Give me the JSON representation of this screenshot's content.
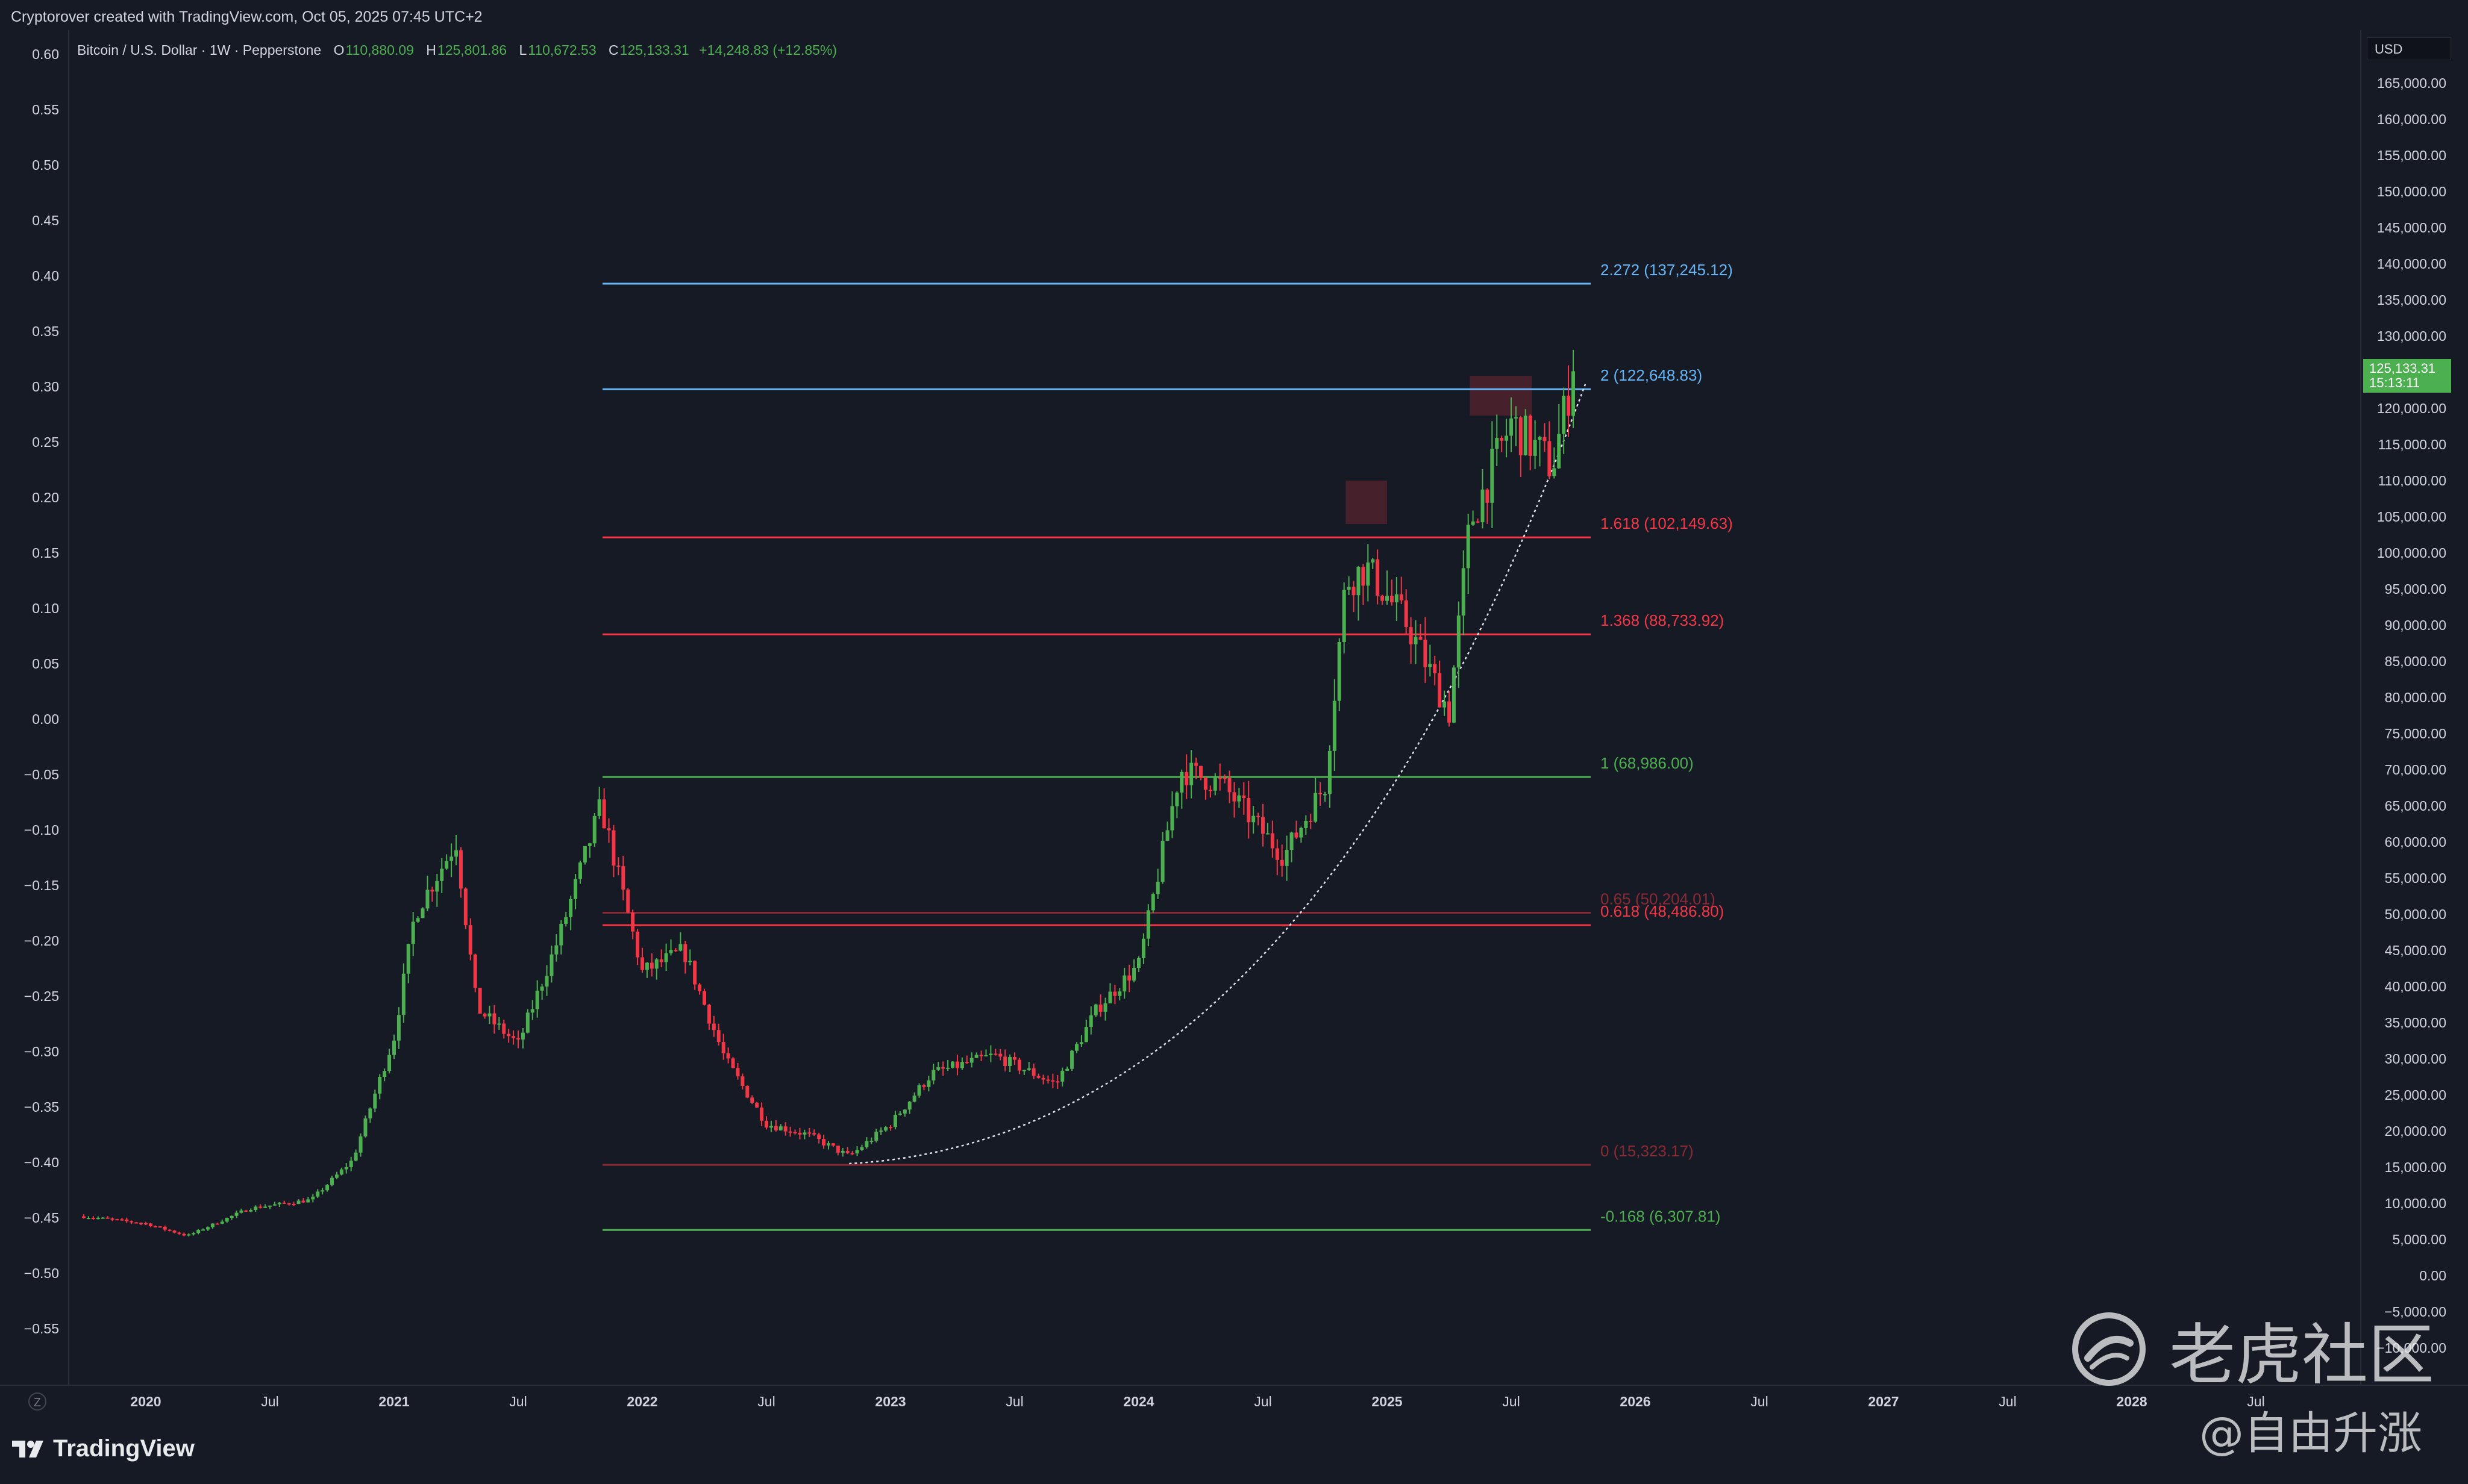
{
  "credit": "Cryptorover created with TradingView.com, Oct 05, 2025 07:45 UTC+2",
  "legend": {
    "symbol": "Bitcoin / U.S. Dollar · 1W · Pepperstone",
    "open_label": "O",
    "open": "110,880.09",
    "high_label": "H",
    "high": "125,801.86",
    "low_label": "L",
    "low": "110,672.53",
    "close_label": "C",
    "close": "125,133.31",
    "change": "+14,248.83 (+12.85%)"
  },
  "currency": "USD",
  "price_tag": {
    "price": "125,133.31",
    "countdown": "15:13:11"
  },
  "footer_brand": "TradingView",
  "watermark": {
    "big": "老虎社区",
    "small": "@自由升涨"
  },
  "colors": {
    "bg": "#161a25",
    "up": "#4caf50",
    "down": "#f23645",
    "fib_blue": "#64b5f6",
    "fib_red": "#f23645",
    "fib_green": "#4caf50",
    "text": "#d1d4dc"
  },
  "chart_data": {
    "type": "candlestick",
    "title": "Bitcoin / U.S. Dollar · 1W · Pepperstone",
    "currency": "USD",
    "right_axis": {
      "label": "USD",
      "ticks": [
        "165,000.00",
        "160,000.00",
        "155,000.00",
        "150,000.00",
        "145,000.00",
        "140,000.00",
        "135,000.00",
        "130,000.00",
        "125,000.00",
        "120,000.00",
        "115,000.00",
        "110,000.00",
        "105,000.00",
        "100,000.00",
        "95,000.00",
        "90,000.00",
        "85,000.00",
        "80,000.00",
        "75,000.00",
        "70,000.00",
        "65,000.00",
        "60,000.00",
        "55,000.00",
        "50,000.00",
        "45,000.00",
        "40,000.00",
        "35,000.00",
        "30,000.00",
        "25,000.00",
        "20,000.00",
        "15,000.00",
        "10,000.00",
        "5,000.00",
        "0.00",
        "−5,000.00",
        "−10,000.00"
      ],
      "range": [
        -10000,
        165000
      ]
    },
    "left_axis": {
      "ticks": [
        "0.60",
        "0.55",
        "0.50",
        "0.45",
        "0.40",
        "0.35",
        "0.30",
        "0.25",
        "0.20",
        "0.15",
        "0.10",
        "0.05",
        "0.00",
        "−0.05",
        "−0.10",
        "−0.15",
        "−0.20",
        "−0.25",
        "−0.30",
        "−0.35",
        "−0.40",
        "−0.45",
        "−0.50",
        "−0.55"
      ]
    },
    "x_axis": {
      "ticks": [
        "2020",
        "Jul",
        "2021",
        "Jul",
        "2022",
        "Jul",
        "2023",
        "Jul",
        "2024",
        "Jul",
        "2025",
        "Jul",
        "2026",
        "Jul",
        "2027",
        "Jul",
        "2028",
        "Jul"
      ]
    },
    "anchor_points": [
      {
        "date": "2019-10",
        "price": 8200
      },
      {
        "date": "2020-01",
        "price": 7200
      },
      {
        "date": "2020-03",
        "price": 5500
      },
      {
        "date": "2020-06",
        "price": 9300
      },
      {
        "date": "2020-09",
        "price": 10500
      },
      {
        "date": "2020-11",
        "price": 16000
      },
      {
        "date": "2021-01",
        "price": 33000
      },
      {
        "date": "2021-02",
        "price": 50000
      },
      {
        "date": "2021-04",
        "price": 60000
      },
      {
        "date": "2021-05",
        "price": 37000
      },
      {
        "date": "2021-07",
        "price": 32000
      },
      {
        "date": "2021-09",
        "price": 47000
      },
      {
        "date": "2021-11",
        "price": 65000
      },
      {
        "date": "2022-01",
        "price": 42000
      },
      {
        "date": "2022-03",
        "price": 45000
      },
      {
        "date": "2022-05",
        "price": 30000
      },
      {
        "date": "2022-07",
        "price": 21000
      },
      {
        "date": "2022-09",
        "price": 19500
      },
      {
        "date": "2022-11",
        "price": 16500
      },
      {
        "date": "2023-01",
        "price": 21000
      },
      {
        "date": "2023-03",
        "price": 28000
      },
      {
        "date": "2023-06",
        "price": 30500
      },
      {
        "date": "2023-09",
        "price": 26500
      },
      {
        "date": "2023-11",
        "price": 37000
      },
      {
        "date": "2024-01",
        "price": 43000
      },
      {
        "date": "2024-03",
        "price": 70000
      },
      {
        "date": "2024-05",
        "price": 68000
      },
      {
        "date": "2024-08",
        "price": 58000
      },
      {
        "date": "2024-10",
        "price": 68000
      },
      {
        "date": "2024-11",
        "price": 96000
      },
      {
        "date": "2024-12",
        "price": 98000
      },
      {
        "date": "2025-02",
        "price": 90000
      },
      {
        "date": "2025-04",
        "price": 78000
      },
      {
        "date": "2025-05",
        "price": 104000
      },
      {
        "date": "2025-07",
        "price": 118000
      },
      {
        "date": "2025-09",
        "price": 112000
      },
      {
        "date": "2025-10",
        "price": 125133.31
      }
    ],
    "fib_levels": [
      {
        "label": "2.272 (137,245.12)",
        "ratio": 2.272,
        "price": 137245.12,
        "color": "#64b5f6"
      },
      {
        "label": "2 (122,648.83)",
        "ratio": 2,
        "price": 122648.83,
        "color": "#64b5f6"
      },
      {
        "label": "1.618 (102,149.63)",
        "ratio": 1.618,
        "price": 102149.63,
        "color": "#f23645"
      },
      {
        "label": "1.368 (88,733.92)",
        "ratio": 1.368,
        "price": 88733.92,
        "color": "#f23645"
      },
      {
        "label": "1 (68,986.00)",
        "ratio": 1,
        "price": 68986.0,
        "color": "#4caf50"
      },
      {
        "label": "0.65 (50,204.01)",
        "ratio": 0.65,
        "price": 50204.01,
        "color": "#8a2a34"
      },
      {
        "label": "0.618 (48,486.80)",
        "ratio": 0.618,
        "price": 48486.8,
        "color": "#f23645"
      },
      {
        "label": "0 (15,323.17)",
        "ratio": 0,
        "price": 15323.17,
        "color": "#8a2a34"
      },
      {
        "label": "-0.168 (6,307.81)",
        "ratio": -0.168,
        "price": 6307.81,
        "color": "#4caf50"
      }
    ],
    "resistance_boxes": [
      {
        "from": "2024-11",
        "to": "2025-01",
        "low": 104000,
        "high": 110000
      },
      {
        "from": "2025-05",
        "to": "2025-08",
        "low": 119000,
        "high": 124500
      }
    ],
    "curve": {
      "style": "dotted white parabolic support",
      "from": {
        "date": "2022-11",
        "price": 15500
      },
      "to": {
        "date": "2025-10",
        "price": 120000
      }
    },
    "grid": false,
    "legend_position": "top-left"
  }
}
